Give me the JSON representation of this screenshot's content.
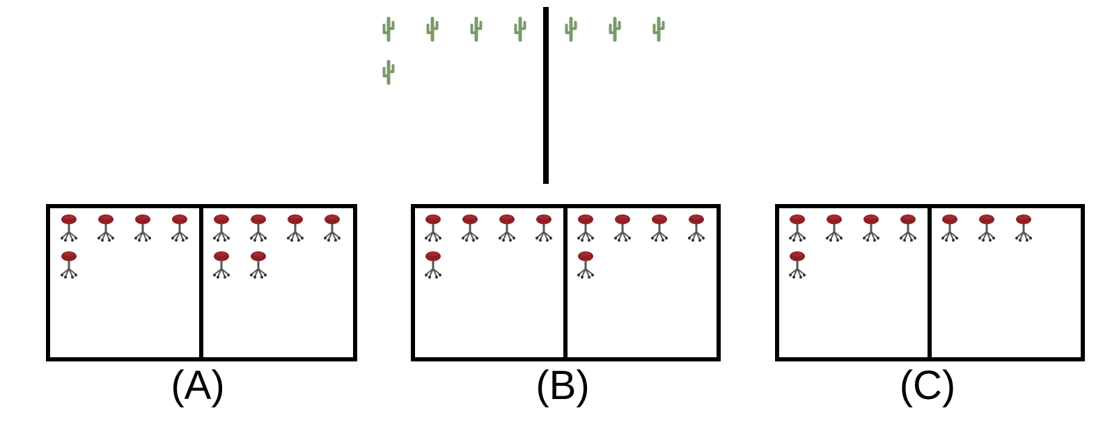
{
  "colors": {
    "background": "#ffffff",
    "border": "#000000",
    "cactus": "#7a9a6a",
    "stool_seat": "#8e1f24",
    "stool_base": "#555555"
  },
  "top_panel": {
    "icon": "cactus-icon",
    "left_count": 5,
    "right_count": 3
  },
  "options": [
    {
      "label": "(A)",
      "icon": "stool-icon",
      "left_count": 5,
      "right_count": 6
    },
    {
      "label": "(B)",
      "icon": "stool-icon",
      "left_count": 5,
      "right_count": 5
    },
    {
      "label": "(C)",
      "icon": "stool-icon",
      "left_count": 5,
      "right_count": 3
    }
  ]
}
